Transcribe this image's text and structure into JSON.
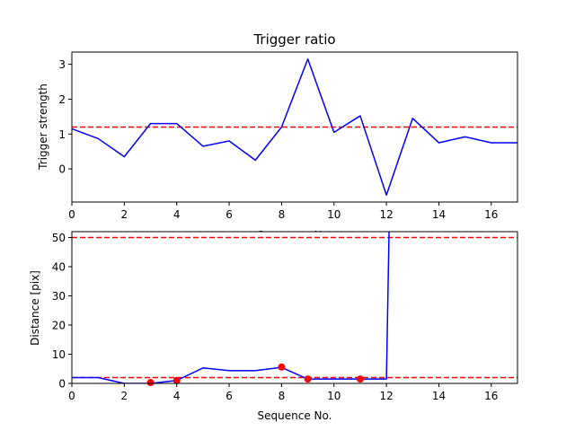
{
  "chart_data": [
    {
      "type": "line",
      "title": "Trigger ratio",
      "xlabel": "Sequence No.",
      "ylabel": "Trigger strength",
      "xlim": [
        0,
        17
      ],
      "ylim": [
        -0.95,
        3.35
      ],
      "xticks": [
        0,
        2,
        4,
        6,
        8,
        10,
        12,
        14,
        16
      ],
      "yticks": [
        0,
        1,
        2,
        3
      ],
      "grid": false,
      "series": [
        {
          "color": "#0000ff",
          "style": "solid",
          "x": [
            0,
            1,
            2,
            3,
            4,
            5,
            6,
            7,
            8,
            9,
            10,
            11,
            12,
            13,
            14,
            15,
            16,
            17
          ],
          "y": [
            1.15,
            0.87,
            0.35,
            1.3,
            1.3,
            0.65,
            0.8,
            0.25,
            1.2,
            3.15,
            1.05,
            1.52,
            -0.75,
            1.45,
            0.75,
            0.92,
            0.75,
            0.75
          ]
        }
      ],
      "hlines": [
        {
          "y": 1.2,
          "color": "#ff0000",
          "style": "dashed"
        }
      ]
    },
    {
      "type": "line",
      "title": "",
      "xlabel": "Sequence No.",
      "ylabel": "Distance [pix]",
      "xlim": [
        0,
        17
      ],
      "ylim": [
        0,
        52
      ],
      "xticks": [
        0,
        2,
        4,
        6,
        8,
        10,
        12,
        14,
        16
      ],
      "yticks": [
        0,
        10,
        20,
        30,
        40,
        50
      ],
      "grid": false,
      "series": [
        {
          "color": "#0000ff",
          "style": "solid",
          "x": [
            0,
            1,
            2,
            3,
            4,
            5,
            6,
            7,
            8,
            9,
            10,
            11,
            12,
            12.1
          ],
          "y": [
            2,
            2,
            0,
            0,
            1,
            5.3,
            4.4,
            4.4,
            5.5,
            1.5,
            1.5,
            1.5,
            1.5,
            52
          ]
        },
        {
          "color": "#ff0000",
          "style": "markers",
          "x": [
            3,
            4,
            8,
            9,
            11
          ],
          "y": [
            0.3,
            1,
            5.6,
            1.5,
            1.5
          ]
        }
      ],
      "hlines": [
        {
          "y": 50,
          "color": "#ff0000",
          "style": "dashed"
        },
        {
          "y": 2,
          "color": "#ff0000",
          "style": "dashed"
        }
      ]
    }
  ]
}
